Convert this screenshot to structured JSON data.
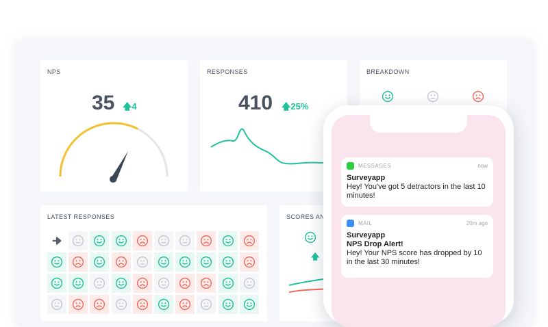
{
  "colors": {
    "positive": "#1ec29a",
    "neutral": "#c4c8cf",
    "negative": "#ef6a5e",
    "gauge": "#f1c232",
    "sparkline": "#1ec29a"
  },
  "nps": {
    "label": "NPS",
    "score": "35",
    "delta": "4",
    "gauge_fraction": 0.65
  },
  "responses": {
    "label": "RESPONSES",
    "count": "410",
    "delta": "25%"
  },
  "breakdown": {
    "label": "BREAKDOWN",
    "icons": [
      "smile-icon",
      "neutral-face-icon",
      "frown-icon"
    ]
  },
  "latest": {
    "label": "LATEST RESPONSES",
    "rows": [
      [
        "arrow",
        "neutral",
        "positive",
        "positive",
        "negative",
        "neutral",
        "neutral",
        "negative",
        "positive",
        "negative"
      ],
      [
        "positive",
        "negative",
        "positive",
        "negative",
        "neutral",
        "positive",
        "positive",
        "positive",
        "positive",
        "negative"
      ],
      [
        "positive",
        "positive",
        "neutral",
        "positive",
        "negative",
        "neutral",
        "negative",
        "negative",
        "positive",
        "neutral"
      ],
      [
        "neutral",
        "negative",
        "negative",
        "neutral",
        "negative",
        "positive",
        "negative",
        "neutral",
        "positive",
        "positive"
      ]
    ]
  },
  "scores": {
    "label": "SCORES AND"
  },
  "notifications": [
    {
      "app": "MESSAGES",
      "time": "now",
      "title": "Surveyapp",
      "subtitle": "",
      "body": "Hey! You've got 5 detractors in the last 10 minutes!"
    },
    {
      "app": "MAIL",
      "time": "20m ago",
      "title": "Surveyapp",
      "subtitle": "NPS Drop Alert!",
      "body": "Hey! Your NPS score has dropped by 10 in the last 30 minutes!"
    }
  ]
}
